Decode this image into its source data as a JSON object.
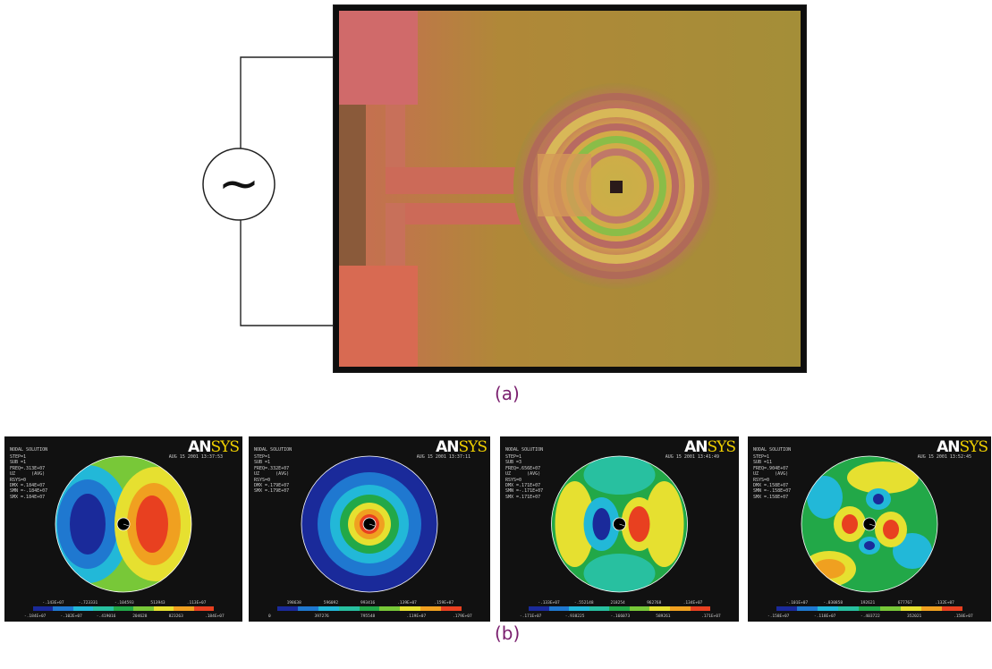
{
  "captions": {
    "a": "(a)",
    "b": "(b)"
  },
  "source_symbol": "~",
  "logo": {
    "part1": "AN",
    "part2": "SYS"
  },
  "colormap": [
    "#1a2a9a",
    "#1f78d0",
    "#22b8d8",
    "#28c0a0",
    "#22a848",
    "#78c838",
    "#e6e030",
    "#f0a020",
    "#e84020"
  ],
  "panels": [
    {
      "title": "NODAL SOLUTION",
      "info": "STEP=1\nSUB =1\nFREQ=.313E+07\nUZ      (AVG)\nRSYS=0\nDMX =.184E+07\nSMN =-.184E+07\nSMX =.184E+07",
      "date": "AUG 15 2001\n13:37:53",
      "ticks_bottom": [
        "-.184E+07",
        "-.102E+07",
        "-.419016",
        "204628",
        "823263",
        ".184E+07"
      ],
      "ticks_top": [
        "-.143E+07",
        "-.723331",
        "-.104593",
        "513943",
        ".113E+07"
      ]
    },
    {
      "title": "NODAL SOLUTION",
      "info": "STEP=1\nSUB =1\nFREQ=.332E+07\nUZ      (AVG)\nRSYS=0\nDMX =.179E+07\nSMX =.179E+07",
      "date": "AUG 15 2001\n13:37:11",
      "ticks_bottom": [
        "0",
        "397276",
        "795548",
        ".119E+07",
        ".179E+07"
      ],
      "ticks_top": [
        "198638",
        "596092",
        "993416",
        ".139E+07",
        ".159E+07"
      ]
    },
    {
      "title": "NODAL SOLUTION",
      "info": "STEP=1\nSUB =3\nFREQ=.656E+07\nUZ      (AVG)\nRSYS=0\nDMX =.171E+07\nSMN =-.171E+07\nSMX =.171E+07",
      "date": "AUG 15 2001\n13:41:49",
      "ticks_bottom": [
        "-.171E+07",
        "-.938225",
        "-.166073",
        "589261",
        ".171E+07"
      ],
      "ticks_top": [
        "-.133E+07",
        "-.552148",
        "218254",
        "962768",
        ".134E+07"
      ]
    },
    {
      "title": "NODAL SOLUTION",
      "info": "STEP=1\nSUB =11\nFREQ=.904E+07\nUZ      (AVG)\nRSYS=0\nDMX =.158E+07\nSMN =-.158E+07\nSMX =.158E+07",
      "date": "AUG 15 2001\n13:52:45",
      "ticks_bottom": [
        "-.158E+07",
        "-.118E+07",
        "-.403722",
        "352021",
        ".158E+07"
      ],
      "ticks_top": [
        "-.101E+07",
        "-.030858",
        "192621",
        "677767",
        ".132E+07"
      ]
    }
  ]
}
